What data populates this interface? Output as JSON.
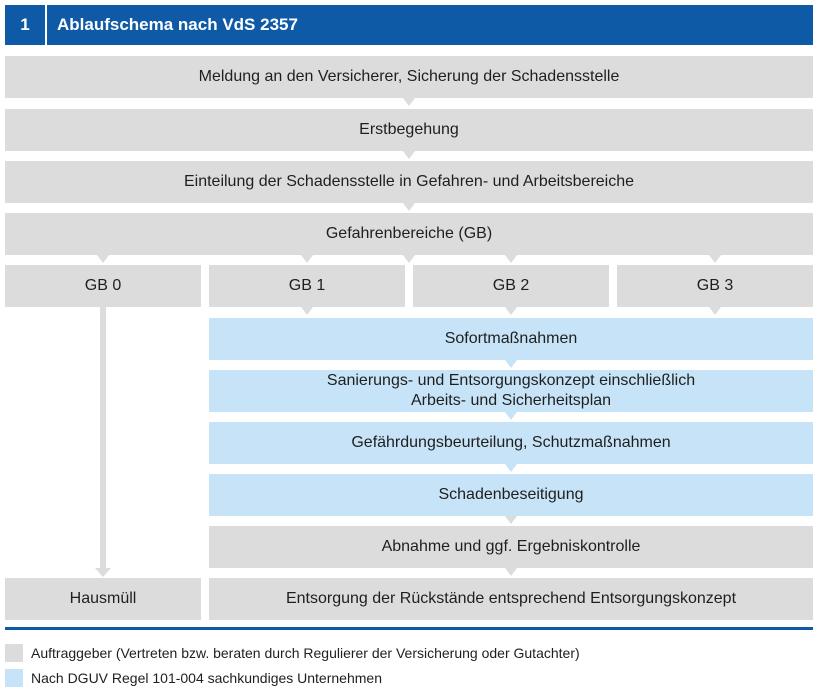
{
  "header": {
    "number": "1",
    "title": "Ablaufschema nach VdS 2357"
  },
  "steps": {
    "meldung": "Meldung an den Versicherer, Sicherung der Schadensstelle",
    "erstbegehung": "Erstbegehung",
    "einteilung": "Einteilung der Schadensstelle in Gefahren- und Arbeitsbereiche",
    "gefahrenbereiche": "Gefahrenbereiche (GB)",
    "gb0": "GB 0",
    "gb1": "GB 1",
    "gb2": "GB 2",
    "gb3": "GB 3",
    "sofort": "Sofortmaßnahmen",
    "sanierung_line1": "Sanierungs- und Entsorgungskonzept einschließlich",
    "sanierung_line2": "Arbeits- und Sicherheitsplan",
    "gefaehrdung": "Gefährdungsbeurteilung, Schutzmaßnahmen",
    "schaden": "Schadenbeseitigung",
    "abnahme": "Abnahme und ggf. Ergebniskontrolle",
    "hausmuell": "Hausmüll",
    "entsorgung": "Entsorgung der Rückstände entsprechend Entsorgungskonzept"
  },
  "legend": {
    "auftraggeber": "Auftraggeber (Vertreten bzw. beraten durch Regulierer der Versicherung oder Gutachter)",
    "unternehmen": "Nach DGUV Regel 101-004 sachkundiges Unternehmen"
  },
  "colors": {
    "brand_blue": "#0f5aa6",
    "gray_box": "#dcdcdc",
    "light_blue_box": "#c7e3f7"
  }
}
